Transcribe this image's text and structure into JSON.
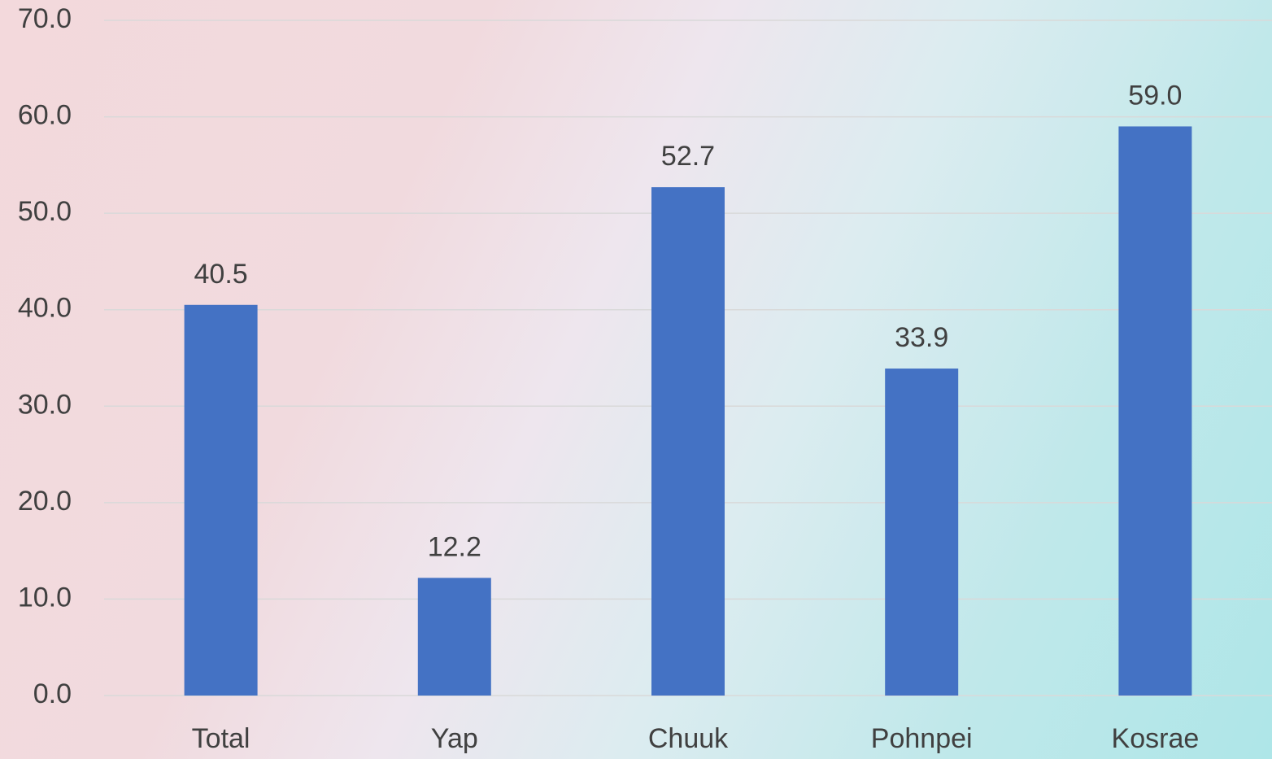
{
  "chart_data": {
    "type": "bar",
    "categories": [
      "Total",
      "Yap",
      "Chuuk",
      "Pohnpei",
      "Kosrae"
    ],
    "values": [
      40.5,
      12.2,
      52.7,
      33.9,
      59.0
    ],
    "value_labels": [
      "40.5",
      "12.2",
      "52.7",
      "33.9",
      "59.0"
    ],
    "color": "#4472c4",
    "ylim": [
      0,
      70
    ],
    "yticks": [
      {
        "value": 0,
        "label": "0.0"
      },
      {
        "value": 10,
        "label": "10.0"
      },
      {
        "value": 20,
        "label": "20.0"
      },
      {
        "value": 30,
        "label": "30.0"
      },
      {
        "value": 40,
        "label": "40.0"
      },
      {
        "value": 50,
        "label": "50.0"
      },
      {
        "value": 60,
        "label": "60.0"
      },
      {
        "value": 70,
        "label": "70.0"
      }
    ],
    "grid": true
  }
}
